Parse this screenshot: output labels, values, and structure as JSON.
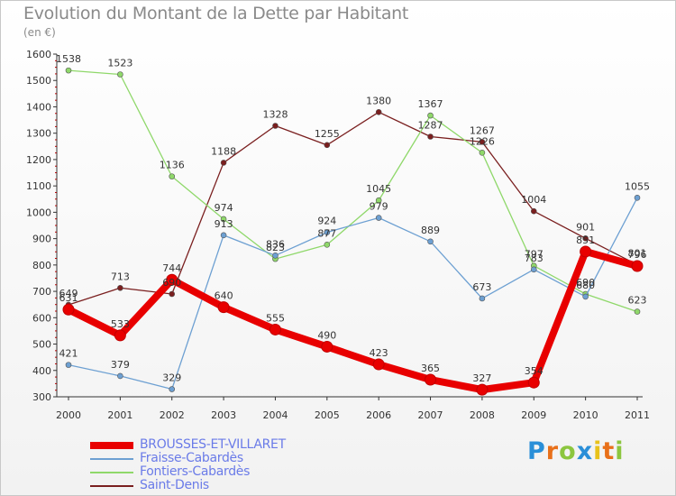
{
  "header": {
    "title": "Evolution du Montant de la Dette par Habitant",
    "subtitle": "(en €)"
  },
  "logo": {
    "letters": [
      "P",
      "r",
      "o",
      "x",
      "i",
      "t",
      "i"
    ],
    "colors": [
      "#2a8fd8",
      "#e8701a",
      "#8cc63f",
      "#2a8fd8",
      "#e8c21a",
      "#e8701a",
      "#8cc63f"
    ]
  },
  "chart_data": {
    "type": "line",
    "title": "Evolution du Montant de la Dette par Habitant",
    "subtitle": "(en €)",
    "xlabel": "",
    "ylabel": "",
    "x": [
      "2000",
      "2001",
      "2002",
      "2003",
      "2004",
      "2005",
      "2006",
      "2007",
      "2008",
      "2009",
      "2010",
      "2011"
    ],
    "ylim": [
      300,
      1600
    ],
    "yticks": [
      300,
      400,
      500,
      600,
      700,
      800,
      900,
      1000,
      1100,
      1200,
      1300,
      1400,
      1500,
      1600
    ],
    "grid": false,
    "legend_position": "bottom-left",
    "series": [
      {
        "name": "BROUSSES-ET-VILLARET",
        "color": "#e80000",
        "values": [
          631,
          533,
          744,
          640,
          555,
          490,
          423,
          365,
          327,
          354,
          851,
          796
        ]
      },
      {
        "name": "Fraisse-Cabardès",
        "color": "#6da0d2",
        "values": [
          421,
          379,
          329,
          913,
          836,
          924,
          979,
          889,
          673,
          783,
          680,
          1055
        ]
      },
      {
        "name": "Fontiers-Cabardès",
        "color": "#8fd86a",
        "values": [
          1538,
          1523,
          1136,
          974,
          823,
          877,
          1045,
          1367,
          1226,
          797,
          690,
          623
        ]
      },
      {
        "name": "Saint-Denis",
        "color": "#7a1f1f",
        "values": [
          649,
          713,
          690,
          1188,
          1328,
          1255,
          1380,
          1287,
          1267,
          1004,
          901,
          801
        ]
      }
    ]
  }
}
